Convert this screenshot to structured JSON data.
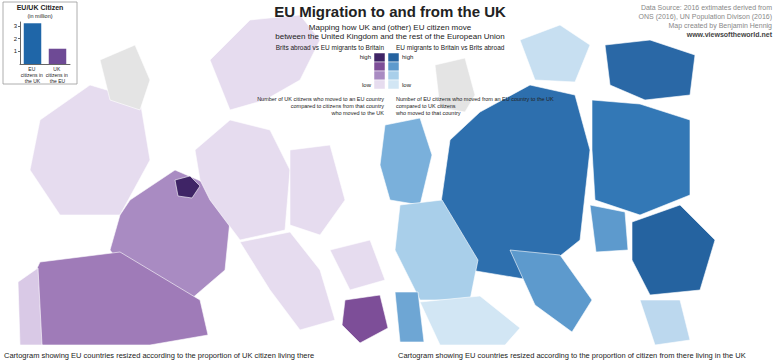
{
  "chart_data": {
    "type": "bar",
    "title": "EU/UK Citizen",
    "subtitle": "(in million)",
    "categories": [
      "EU citizens in the UK",
      "UK citizens in the EU"
    ],
    "values": [
      3.2,
      1.2
    ],
    "colors": [
      "#1f66a8",
      "#6e4a95"
    ],
    "ylim": [
      0,
      3.3
    ],
    "yticks": [
      1,
      2,
      3
    ]
  },
  "title": "EU Migration to and from the UK",
  "subtitle": [
    "Mapping how UK and (other) EU citizen move",
    "between the United Kingdom and the rest of the European Union"
  ],
  "source": [
    "Data Source: 2016 extimates derived from",
    "ONS (2016), UN Population Divison (2016)",
    "Map created by Benjamin Hennig",
    "www.viewsoftheworld.net"
  ],
  "map": {
    "legend": [
      {
        "heading": "Brits abroad vs EU migrants to Britain",
        "high": "high",
        "low": "low",
        "colors": [
          "#3f2466",
          "#7d4e98",
          "#a98bc2",
          "#e6dcef"
        ],
        "description": [
          "Number of UK citizens who moved to an EU country",
          "compared to citizens from that country",
          "who moved to the UK"
        ]
      },
      {
        "heading": "EU migrants to Britain vs Brits abroad",
        "high": "high",
        "low": "low",
        "colors": [
          "#2563a0",
          "#5d9acd",
          "#a9cfea",
          "#d2e6f4"
        ],
        "description": [
          "Number of EU citizens who moved from an EU country to the UK",
          "compared to UK citizens",
          "who moved to that country"
        ]
      }
    ],
    "panels": [
      {
        "caption": "Cartogram showing EU countries resized according to the proportion of UK citizen living there",
        "regions": [
          {
            "color": "#e6dcef"
          },
          {
            "color": "#e4e4e4"
          },
          {
            "color": "#a98bc2"
          },
          {
            "color": "#3f2466"
          },
          {
            "color": "#e6dcef"
          },
          {
            "color": "#e6dcef"
          },
          {
            "color": "#e6dcef"
          },
          {
            "color": "#9f7bb8"
          },
          {
            "color": "#d9c9e6"
          },
          {
            "color": "#e6dcef"
          },
          {
            "color": "#e6dcef"
          },
          {
            "color": "#7d4e98"
          }
        ]
      },
      {
        "caption": "Cartogram showing EU countries resized according to the proportion of citizen from there living in the UK",
        "regions": [
          {
            "color": "#e4e4e4"
          },
          {
            "color": "#7ab0db"
          },
          {
            "color": "#2d6fae"
          },
          {
            "color": "#c7dff1"
          },
          {
            "color": "#2a68a6"
          },
          {
            "color": "#3378b6"
          },
          {
            "color": "#a9cfea"
          },
          {
            "color": "#d2e6f4"
          },
          {
            "color": "#6ea6d4"
          },
          {
            "color": "#5d9acd"
          },
          {
            "color": "#5d9acd"
          },
          {
            "color": "#2563a0"
          },
          {
            "color": "#bcd8ee"
          }
        ]
      }
    ]
  }
}
